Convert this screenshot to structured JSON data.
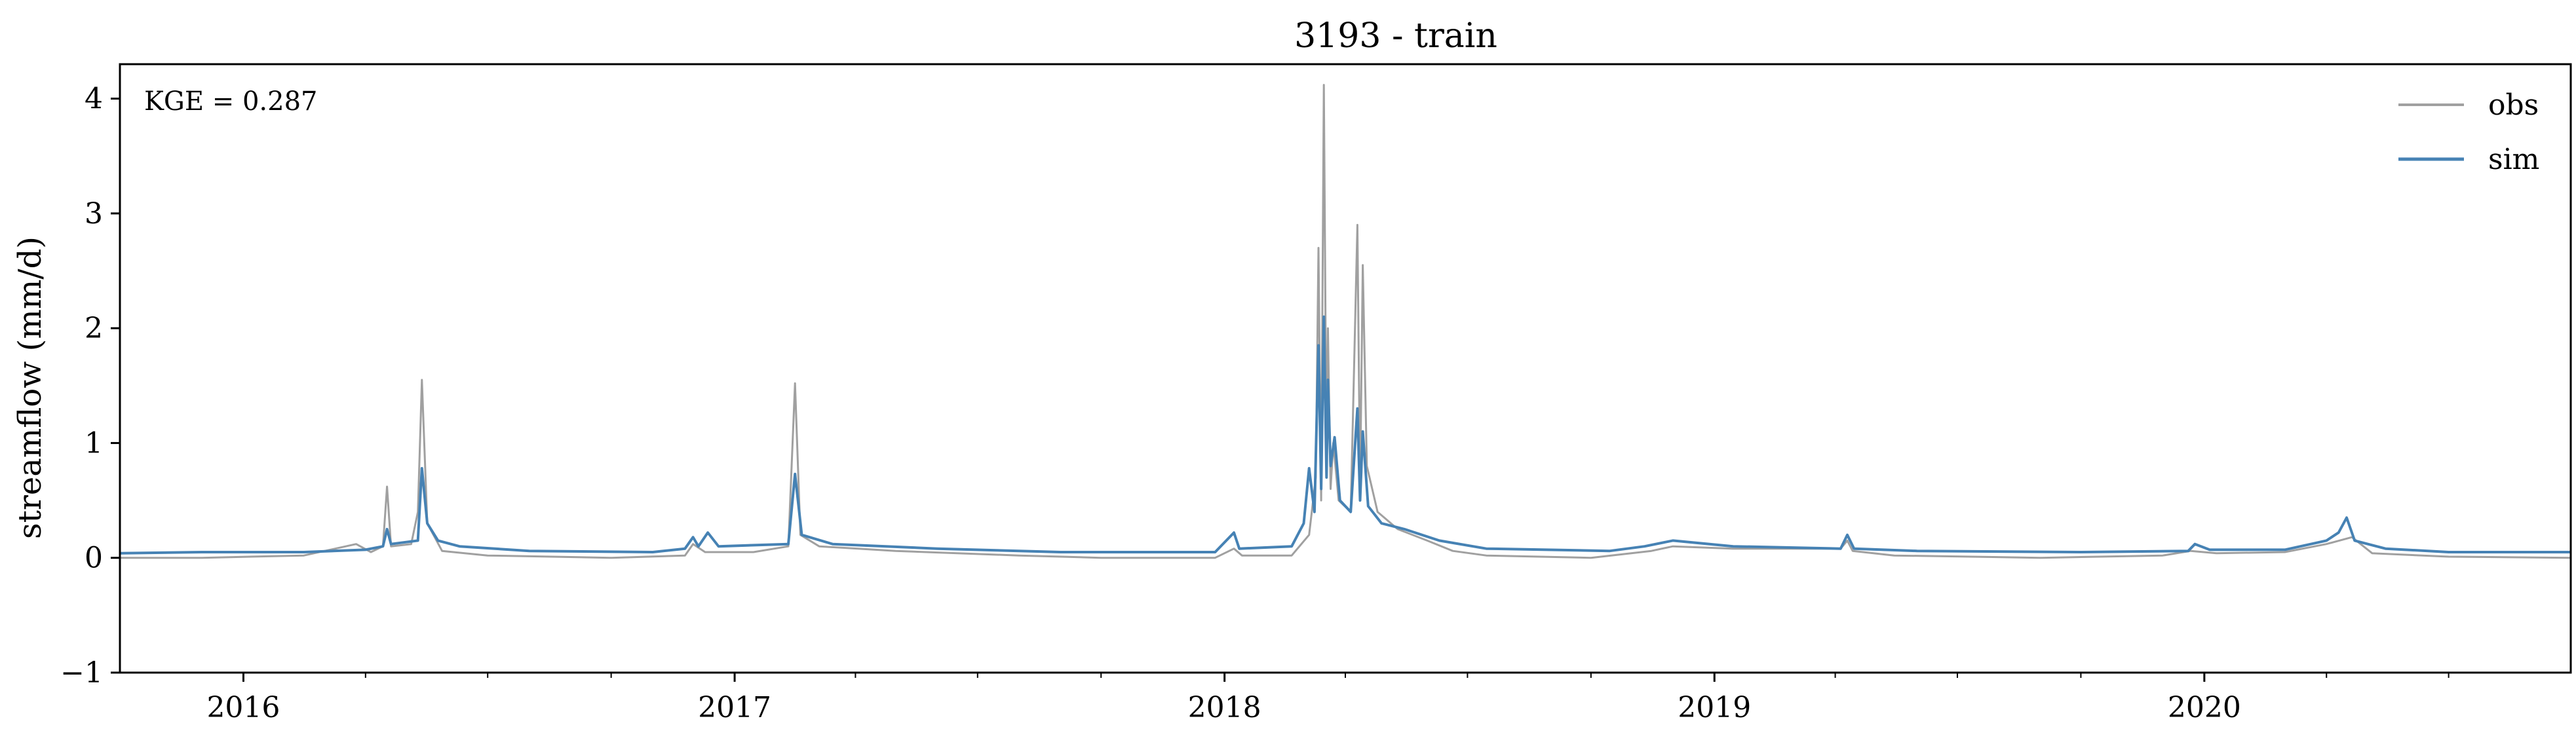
{
  "chart_data": {
    "type": "line",
    "title": "3193 - train",
    "xlabel": "",
    "ylabel": "streamflow (mm/d)",
    "annotation": "KGE = 0.287",
    "xlim": [
      "2015-10-01",
      "2020-09-30"
    ],
    "ylim": [
      -1,
      4.3
    ],
    "yticks": [
      -1,
      0,
      1,
      2,
      3,
      4
    ],
    "ytick_labels": [
      "−1",
      "0",
      "1",
      "2",
      "3",
      "4"
    ],
    "xticks": [
      "2016-01-01",
      "2017-01-01",
      "2018-01-01",
      "2019-01-01",
      "2020-01-01"
    ],
    "xtick_labels": [
      "2016",
      "2017",
      "2018",
      "2019",
      "2020"
    ],
    "minor_xticks": [
      "2016-04-01",
      "2016-07-01",
      "2016-10-01",
      "2017-04-01",
      "2017-07-01",
      "2017-10-01",
      "2018-04-01",
      "2018-07-01",
      "2018-10-01",
      "2019-04-01",
      "2019-07-01",
      "2019-10-01",
      "2020-04-01",
      "2020-07-01"
    ],
    "grid": false,
    "legend_position": "top-right",
    "series": [
      {
        "name": "obs",
        "color": "#a0a0a0",
        "points": [
          [
            "2015-10-01",
            0.0
          ],
          [
            "2015-12-01",
            0.0
          ],
          [
            "2016-02-15",
            0.02
          ],
          [
            "2016-03-25",
            0.12
          ],
          [
            "2016-04-05",
            0.05
          ],
          [
            "2016-04-14",
            0.1
          ],
          [
            "2016-04-17",
            0.62
          ],
          [
            "2016-04-20",
            0.1
          ],
          [
            "2016-05-05",
            0.12
          ],
          [
            "2016-05-10",
            0.4
          ],
          [
            "2016-05-13",
            1.55
          ],
          [
            "2016-05-17",
            0.3
          ],
          [
            "2016-05-28",
            0.06
          ],
          [
            "2016-07-01",
            0.02
          ],
          [
            "2016-10-01",
            0.0
          ],
          [
            "2016-11-25",
            0.02
          ],
          [
            "2016-12-01",
            0.12
          ],
          [
            "2016-12-10",
            0.05
          ],
          [
            "2017-01-15",
            0.05
          ],
          [
            "2017-02-10",
            0.1
          ],
          [
            "2017-02-15",
            1.52
          ],
          [
            "2017-02-19",
            0.2
          ],
          [
            "2017-03-05",
            0.1
          ],
          [
            "2017-05-01",
            0.06
          ],
          [
            "2017-08-01",
            0.02
          ],
          [
            "2017-10-01",
            0.0
          ],
          [
            "2017-12-25",
            0.0
          ],
          [
            "2018-01-08",
            0.08
          ],
          [
            "2018-01-14",
            0.02
          ],
          [
            "2018-02-20",
            0.02
          ],
          [
            "2018-03-05",
            0.2
          ],
          [
            "2018-03-10",
            0.7
          ],
          [
            "2018-03-12",
            2.7
          ],
          [
            "2018-03-14",
            0.5
          ],
          [
            "2018-03-16",
            4.12
          ],
          [
            "2018-03-18",
            0.8
          ],
          [
            "2018-03-19",
            2.0
          ],
          [
            "2018-03-21",
            0.6
          ],
          [
            "2018-03-23",
            1.0
          ],
          [
            "2018-03-27",
            0.5
          ],
          [
            "2018-04-05",
            0.4
          ],
          [
            "2018-04-10",
            2.9
          ],
          [
            "2018-04-12",
            0.6
          ],
          [
            "2018-04-14",
            2.55
          ],
          [
            "2018-04-17",
            0.8
          ],
          [
            "2018-04-25",
            0.4
          ],
          [
            "2018-05-10",
            0.25
          ],
          [
            "2018-06-01",
            0.15
          ],
          [
            "2018-06-20",
            0.06
          ],
          [
            "2018-07-15",
            0.02
          ],
          [
            "2018-10-01",
            0.0
          ],
          [
            "2018-11-15",
            0.06
          ],
          [
            "2018-12-01",
            0.1
          ],
          [
            "2019-01-15",
            0.08
          ],
          [
            "2019-04-05",
            0.08
          ],
          [
            "2019-04-10",
            0.15
          ],
          [
            "2019-04-14",
            0.06
          ],
          [
            "2019-05-15",
            0.02
          ],
          [
            "2019-09-01",
            0.0
          ],
          [
            "2019-12-01",
            0.02
          ],
          [
            "2019-12-22",
            0.06
          ],
          [
            "2020-01-10",
            0.04
          ],
          [
            "2020-03-01",
            0.05
          ],
          [
            "2020-04-01",
            0.12
          ],
          [
            "2020-04-20",
            0.18
          ],
          [
            "2020-05-05",
            0.04
          ],
          [
            "2020-07-01",
            0.01
          ],
          [
            "2020-09-30",
            0.0
          ]
        ]
      },
      {
        "name": "sim",
        "color": "#4682b4",
        "points": [
          [
            "2015-10-01",
            0.04
          ],
          [
            "2015-12-01",
            0.05
          ],
          [
            "2016-02-15",
            0.05
          ],
          [
            "2016-04-01",
            0.07
          ],
          [
            "2016-04-14",
            0.1
          ],
          [
            "2016-04-17",
            0.25
          ],
          [
            "2016-04-20",
            0.12
          ],
          [
            "2016-05-10",
            0.15
          ],
          [
            "2016-05-13",
            0.78
          ],
          [
            "2016-05-17",
            0.3
          ],
          [
            "2016-05-25",
            0.15
          ],
          [
            "2016-06-10",
            0.1
          ],
          [
            "2016-08-01",
            0.06
          ],
          [
            "2016-11-01",
            0.05
          ],
          [
            "2016-11-25",
            0.08
          ],
          [
            "2016-12-01",
            0.18
          ],
          [
            "2016-12-05",
            0.1
          ],
          [
            "2016-12-12",
            0.22
          ],
          [
            "2016-12-20",
            0.1
          ],
          [
            "2017-02-10",
            0.12
          ],
          [
            "2017-02-15",
            0.73
          ],
          [
            "2017-02-20",
            0.2
          ],
          [
            "2017-03-15",
            0.12
          ],
          [
            "2017-06-01",
            0.08
          ],
          [
            "2017-09-01",
            0.05
          ],
          [
            "2017-12-25",
            0.05
          ],
          [
            "2018-01-08",
            0.22
          ],
          [
            "2018-01-12",
            0.08
          ],
          [
            "2018-02-20",
            0.1
          ],
          [
            "2018-03-01",
            0.3
          ],
          [
            "2018-03-05",
            0.78
          ],
          [
            "2018-03-09",
            0.4
          ],
          [
            "2018-03-12",
            1.85
          ],
          [
            "2018-03-14",
            0.6
          ],
          [
            "2018-03-16",
            2.1
          ],
          [
            "2018-03-18",
            0.7
          ],
          [
            "2018-03-19",
            1.55
          ],
          [
            "2018-03-21",
            0.8
          ],
          [
            "2018-03-24",
            1.05
          ],
          [
            "2018-03-28",
            0.5
          ],
          [
            "2018-04-05",
            0.4
          ],
          [
            "2018-04-10",
            1.3
          ],
          [
            "2018-04-12",
            0.5
          ],
          [
            "2018-04-14",
            1.1
          ],
          [
            "2018-04-18",
            0.45
          ],
          [
            "2018-04-28",
            0.3
          ],
          [
            "2018-05-15",
            0.25
          ],
          [
            "2018-06-10",
            0.15
          ],
          [
            "2018-07-15",
            0.08
          ],
          [
            "2018-10-15",
            0.06
          ],
          [
            "2018-11-10",
            0.1
          ],
          [
            "2018-12-01",
            0.15
          ],
          [
            "2019-01-15",
            0.1
          ],
          [
            "2019-04-05",
            0.08
          ],
          [
            "2019-04-10",
            0.2
          ],
          [
            "2019-04-15",
            0.08
          ],
          [
            "2019-06-01",
            0.06
          ],
          [
            "2019-10-01",
            0.05
          ],
          [
            "2019-12-20",
            0.06
          ],
          [
            "2019-12-25",
            0.12
          ],
          [
            "2020-01-05",
            0.07
          ],
          [
            "2020-03-01",
            0.07
          ],
          [
            "2020-04-01",
            0.15
          ],
          [
            "2020-04-10",
            0.22
          ],
          [
            "2020-04-16",
            0.35
          ],
          [
            "2020-04-22",
            0.15
          ],
          [
            "2020-05-15",
            0.08
          ],
          [
            "2020-07-01",
            0.05
          ],
          [
            "2020-09-30",
            0.05
          ]
        ]
      }
    ]
  }
}
